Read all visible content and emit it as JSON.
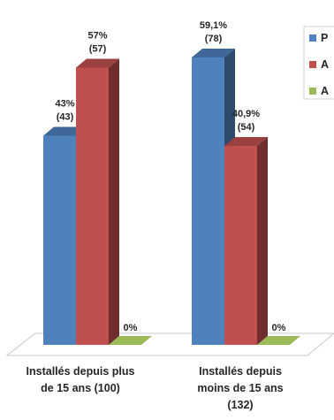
{
  "chart_data": {
    "type": "bar",
    "style": "3d-clustered-column",
    "categories": [
      [
        "Installés depuis plus",
        "de 15 ans (100)"
      ],
      [
        "Installés depuis",
        "moins de 15 ans",
        "(132)"
      ]
    ],
    "series": [
      {
        "name": "P",
        "color": "#4f81bd",
        "values": [
          43,
          59.1
        ],
        "labels": [
          [
            "43%",
            "(43)"
          ],
          [
            "59,1%",
            "(78)"
          ]
        ]
      },
      {
        "name": "A",
        "color": "#c0504d",
        "values": [
          57,
          40.9
        ],
        "labels": [
          [
            "57%",
            "(57)"
          ],
          [
            "40,9%",
            "(54)"
          ]
        ]
      },
      {
        "name": "A",
        "color": "#9bbb59",
        "values": [
          0,
          0
        ],
        "labels": [
          [
            "0%"
          ],
          [
            "0%"
          ]
        ]
      }
    ],
    "ylim": [
      0,
      60
    ],
    "grid": false,
    "legend_position": "top-right (cropped)"
  }
}
